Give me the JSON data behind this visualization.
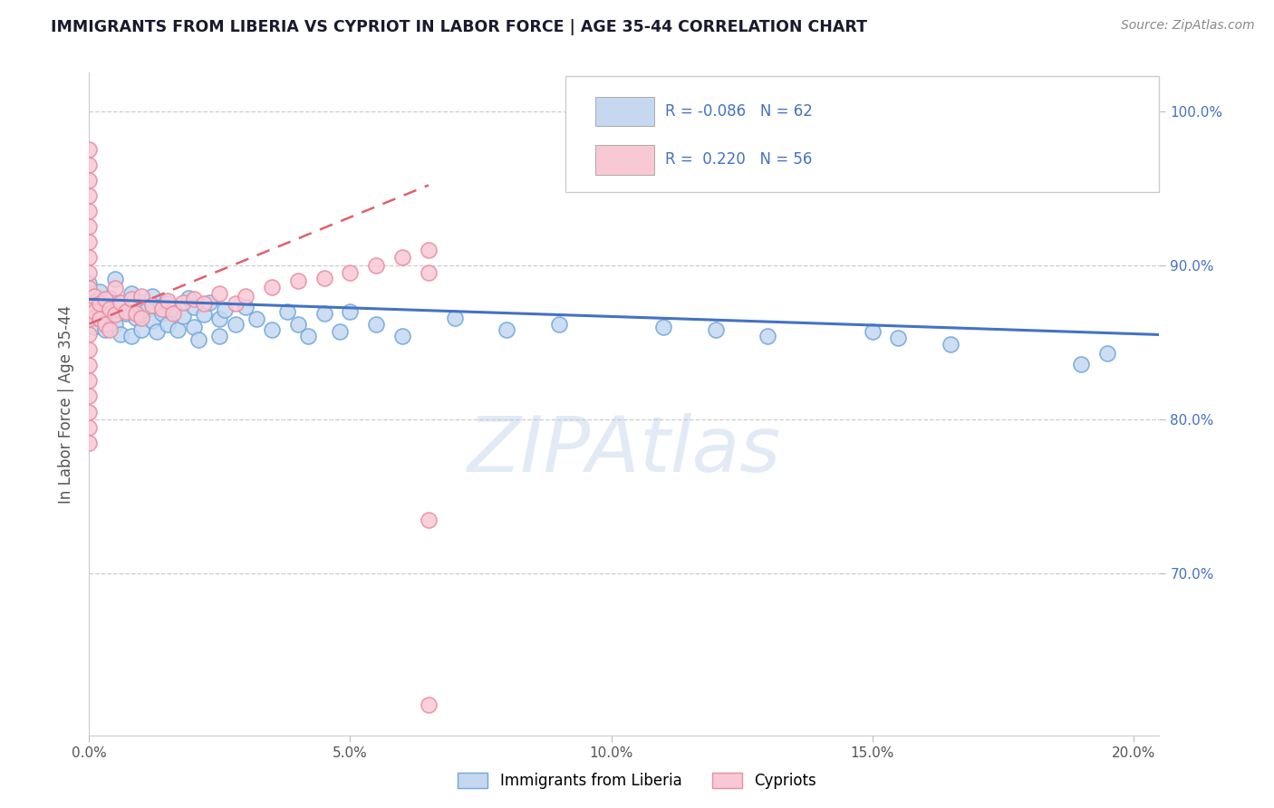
{
  "title": "IMMIGRANTS FROM LIBERIA VS CYPRIOT IN LABOR FORCE | AGE 35-44 CORRELATION CHART",
  "source": "Source: ZipAtlas.com",
  "ylabel": "In Labor Force | Age 35-44",
  "xlim": [
    0.0,
    0.205
  ],
  "ylim": [
    0.595,
    1.025
  ],
  "xticks": [
    0.0,
    0.05,
    0.1,
    0.15,
    0.2
  ],
  "xtick_labels": [
    "0.0%",
    "5.0%",
    "10.0%",
    "15.0%",
    "20.0%"
  ],
  "yticks_right": [
    0.7,
    0.8,
    0.9,
    1.0
  ],
  "ytick_labels_right": [
    "70.0%",
    "80.0%",
    "90.0%",
    "100.0%"
  ],
  "yticks_grid": [
    0.7,
    0.8,
    0.9,
    1.0
  ],
  "blue_R": -0.086,
  "blue_N": 62,
  "pink_R": 0.22,
  "pink_N": 56,
  "blue_face_color": "#c5d8f0",
  "blue_edge_color": "#6fa8dc",
  "pink_face_color": "#f9c8d5",
  "pink_edge_color": "#e88fa0",
  "blue_line_color": "#4472C4",
  "pink_line_color": "#E06070",
  "legend_label_blue": "Immigrants from Liberia",
  "legend_label_pink": "Cypriots",
  "watermark": "ZIPAtlas",
  "R_N_color": "#4472C4",
  "title_color": "#1a1a2e",
  "source_color": "#888888",
  "grid_color": "#cccccc",
  "axis_text_color": "#555555",
  "blue_trend_x0": 0.0,
  "blue_trend_y0": 0.878,
  "blue_trend_x1": 0.205,
  "blue_trend_y1": 0.855,
  "pink_trend_x0": 0.0,
  "pink_trend_y0": 0.862,
  "pink_trend_x1": 0.065,
  "pink_trend_y1": 0.952,
  "blue_x": [
    0.0,
    0.0,
    0.001,
    0.001,
    0.002,
    0.002,
    0.003,
    0.003,
    0.004,
    0.005,
    0.005,
    0.006,
    0.006,
    0.007,
    0.008,
    0.008,
    0.009,
    0.01,
    0.01,
    0.011,
    0.012,
    0.012,
    0.013,
    0.014,
    0.015,
    0.015,
    0.016,
    0.017,
    0.018,
    0.019,
    0.02,
    0.02,
    0.021,
    0.022,
    0.023,
    0.025,
    0.025,
    0.026,
    0.028,
    0.03,
    0.032,
    0.035,
    0.038,
    0.04,
    0.042,
    0.045,
    0.048,
    0.05,
    0.055,
    0.06,
    0.07,
    0.08,
    0.09,
    0.1,
    0.11,
    0.12,
    0.13,
    0.15,
    0.155,
    0.165,
    0.19,
    0.195
  ],
  "blue_y": [
    0.875,
    0.888,
    0.871,
    0.86,
    0.883,
    0.865,
    0.872,
    0.858,
    0.879,
    0.891,
    0.862,
    0.875,
    0.855,
    0.869,
    0.882,
    0.854,
    0.866,
    0.876,
    0.858,
    0.871,
    0.864,
    0.88,
    0.857,
    0.869,
    0.875,
    0.862,
    0.872,
    0.858,
    0.867,
    0.879,
    0.873,
    0.86,
    0.852,
    0.868,
    0.876,
    0.865,
    0.854,
    0.871,
    0.862,
    0.873,
    0.865,
    0.858,
    0.87,
    0.862,
    0.854,
    0.869,
    0.857,
    0.87,
    0.862,
    0.854,
    0.866,
    0.858,
    0.862,
    0.972,
    0.86,
    0.858,
    0.854,
    0.857,
    0.853,
    0.849,
    0.836,
    0.843
  ],
  "pink_x": [
    0.0,
    0.0,
    0.0,
    0.0,
    0.0,
    0.0,
    0.0,
    0.0,
    0.0,
    0.0,
    0.0,
    0.0,
    0.0,
    0.0,
    0.0,
    0.0,
    0.0,
    0.0,
    0.0,
    0.0,
    0.001,
    0.001,
    0.002,
    0.002,
    0.003,
    0.003,
    0.004,
    0.004,
    0.005,
    0.005,
    0.006,
    0.007,
    0.008,
    0.009,
    0.01,
    0.01,
    0.012,
    0.014,
    0.015,
    0.016,
    0.018,
    0.02,
    0.022,
    0.025,
    0.028,
    0.03,
    0.035,
    0.04,
    0.045,
    0.05,
    0.055,
    0.06,
    0.065,
    0.065,
    0.065,
    0.065
  ],
  "pink_y": [
    0.975,
    0.965,
    0.955,
    0.945,
    0.935,
    0.925,
    0.915,
    0.905,
    0.895,
    0.885,
    0.875,
    0.865,
    0.855,
    0.845,
    0.835,
    0.825,
    0.815,
    0.805,
    0.795,
    0.785,
    0.88,
    0.87,
    0.875,
    0.865,
    0.878,
    0.862,
    0.872,
    0.858,
    0.885,
    0.868,
    0.876,
    0.87,
    0.878,
    0.869,
    0.88,
    0.866,
    0.874,
    0.872,
    0.877,
    0.869,
    0.876,
    0.878,
    0.875,
    0.882,
    0.875,
    0.88,
    0.886,
    0.89,
    0.892,
    0.895,
    0.9,
    0.905,
    0.91,
    0.895,
    0.615,
    0.735
  ]
}
